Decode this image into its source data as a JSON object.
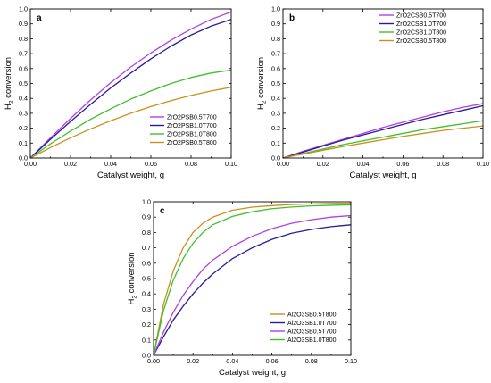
{
  "chart_data": [
    {
      "type": "line",
      "panel_label": "a",
      "xlabel": "Catalyst weight, g",
      "ylabel": "H",
      "ylabel_sub": "2",
      "ylabel_rest": " conversion",
      "xlim": [
        0,
        0.1
      ],
      "ylim": [
        0,
        1.0
      ],
      "xticks": [
        "0.00",
        "0.02",
        "0.04",
        "0.06",
        "0.08",
        "0.10"
      ],
      "yticks": [
        "0.0",
        "0.1",
        "0.2",
        "0.3",
        "0.4",
        "0.5",
        "0.6",
        "0.7",
        "0.8",
        "0.9",
        "1.0"
      ],
      "legend_position": "bottom-right",
      "grid": false,
      "x": [
        0,
        0.01,
        0.02,
        0.03,
        0.04,
        0.05,
        0.06,
        0.07,
        0.08,
        0.09,
        0.1
      ],
      "series": [
        {
          "name": "ZrO2PSB0.5T700",
          "color": "#b040e0",
          "values": [
            0,
            0.135,
            0.265,
            0.39,
            0.505,
            0.61,
            0.705,
            0.79,
            0.865,
            0.93,
            0.98
          ]
        },
        {
          "name": "ZrO2PSB1.0T700",
          "color": "#2a1a9a",
          "values": [
            0,
            0.125,
            0.245,
            0.36,
            0.47,
            0.57,
            0.665,
            0.75,
            0.825,
            0.885,
            0.93
          ]
        },
        {
          "name": "ZrO2PSB1.0T800",
          "color": "#3ec02a",
          "values": [
            0,
            0.095,
            0.18,
            0.26,
            0.33,
            0.395,
            0.45,
            0.5,
            0.54,
            0.57,
            0.59
          ]
        },
        {
          "name": "ZrO2PSB0.5T800",
          "color": "#c8901e",
          "values": [
            0,
            0.07,
            0.135,
            0.195,
            0.25,
            0.3,
            0.345,
            0.385,
            0.42,
            0.45,
            0.475
          ]
        }
      ]
    },
    {
      "type": "line",
      "panel_label": "b",
      "xlabel": "Catalyst weight, g",
      "ylabel": "H",
      "ylabel_sub": "2",
      "ylabel_rest": " conversion",
      "xlim": [
        0,
        0.1
      ],
      "ylim": [
        0,
        1.0
      ],
      "xticks": [
        "0.00",
        "0.02",
        "0.04",
        "0.06",
        "0.08",
        "0.10"
      ],
      "yticks": [
        "0.0",
        "0.1",
        "0.2",
        "0.3",
        "0.4",
        "0.5",
        "0.6",
        "0.7",
        "0.8",
        "0.9",
        "1.0"
      ],
      "legend_position": "top-right",
      "grid": false,
      "x": [
        0,
        0.01,
        0.02,
        0.03,
        0.04,
        0.05,
        0.06,
        0.07,
        0.08,
        0.09,
        0.1
      ],
      "series": [
        {
          "name": "ZrO2CSB0.5T700",
          "color": "#b040e0",
          "values": [
            0,
            0.045,
            0.085,
            0.125,
            0.165,
            0.205,
            0.24,
            0.275,
            0.31,
            0.34,
            0.365
          ]
        },
        {
          "name": "ZrO2CSB1.0T700",
          "color": "#2a1a9a",
          "values": [
            0,
            0.04,
            0.08,
            0.12,
            0.155,
            0.19,
            0.225,
            0.26,
            0.29,
            0.32,
            0.35
          ]
        },
        {
          "name": "ZrO2CSB1.0T800",
          "color": "#3ec02a",
          "values": [
            0,
            0.03,
            0.06,
            0.09,
            0.115,
            0.14,
            0.165,
            0.19,
            0.21,
            0.23,
            0.25
          ]
        },
        {
          "name": "ZrO2CSB0.5T800",
          "color": "#c8901e",
          "values": [
            0,
            0.026,
            0.052,
            0.077,
            0.1,
            0.123,
            0.145,
            0.165,
            0.185,
            0.2,
            0.215
          ]
        }
      ]
    },
    {
      "type": "line",
      "panel_label": "c",
      "xlabel": "Catalyst weight, g",
      "ylabel": "H",
      "ylabel_sub": "2",
      "ylabel_rest": " conversion",
      "xlim": [
        0,
        0.1
      ],
      "ylim": [
        0,
        1.0
      ],
      "xticks": [
        "0.00",
        "0.02",
        "0.04",
        "0.06",
        "0.08",
        "0.10"
      ],
      "yticks": [
        "0.0",
        "0.1",
        "0.2",
        "0.3",
        "0.4",
        "0.5",
        "0.6",
        "0.7",
        "0.8",
        "0.9",
        "1.0"
      ],
      "legend_position": "bottom-right",
      "grid": false,
      "x": [
        0,
        0.005,
        0.01,
        0.015,
        0.02,
        0.025,
        0.03,
        0.04,
        0.05,
        0.06,
        0.07,
        0.08,
        0.09,
        0.1
      ],
      "series": [
        {
          "name": "Al2O3SB0.5T800",
          "color": "#c8901e",
          "values": [
            0,
            0.33,
            0.55,
            0.7,
            0.8,
            0.86,
            0.9,
            0.945,
            0.965,
            0.975,
            0.982,
            0.986,
            0.989,
            0.99
          ]
        },
        {
          "name": "Al2O3SB1.0T700",
          "color": "#2a1a9a",
          "values": [
            0,
            0.12,
            0.23,
            0.32,
            0.4,
            0.47,
            0.53,
            0.63,
            0.7,
            0.755,
            0.795,
            0.82,
            0.838,
            0.85
          ]
        },
        {
          "name": "Al2O3SB0.5T700",
          "color": "#b040e0",
          "values": [
            0,
            0.15,
            0.28,
            0.39,
            0.48,
            0.56,
            0.62,
            0.71,
            0.775,
            0.825,
            0.86,
            0.883,
            0.9,
            0.91
          ]
        },
        {
          "name": "Al2O3SB1.0T800",
          "color": "#3ec02a",
          "values": [
            0,
            0.29,
            0.49,
            0.63,
            0.73,
            0.8,
            0.85,
            0.905,
            0.935,
            0.955,
            0.966,
            0.973,
            0.977,
            0.98
          ]
        }
      ]
    }
  ]
}
